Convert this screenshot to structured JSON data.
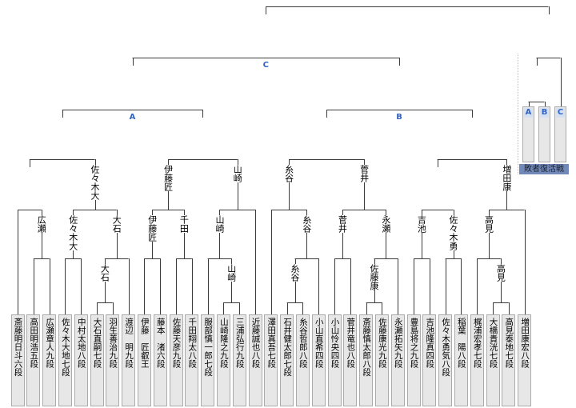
{
  "colors": {
    "line": "#3c3c3c",
    "accent_blue": "#3464c0",
    "box_fill": "#e7e7e7",
    "box_border": "#ababab",
    "letter_bg": "#d4e0f3",
    "revival_bg": "#7288b8",
    "revival_text": "#1c2430",
    "dotted": "#bcbcbc"
  },
  "players": [
    "斎藤明日斗六段",
    "高田明浩五段",
    "広瀬章人九段",
    "佐々木大地七段",
    "中村太地八段",
    "大石直嗣七段",
    "羽生善治九段",
    "渡辺　明九段",
    "伊藤　匠叡王",
    "藤本　渚六段",
    "佐藤天彦九段",
    "千田翔太八段",
    "服部慎一郎七段",
    "山崎隆之九段",
    "三浦弘行九段",
    "近藤誠也八段",
    "澤田真吾七段",
    "石井健太郎七段",
    "糸谷哲郎八段",
    "小山直希四段",
    "小山怜央四段",
    "菅井竜也八段",
    "斎藤慎太郎八段",
    "佐藤康光九段",
    "永瀬拓矢九段",
    "豊島将之九段",
    "吉池隆真四段",
    "佐々木勇気八段",
    "稲葉　陽八段",
    "梶浦宏孝七段",
    "大橋貴洸七段",
    "高見泰地七段",
    "増田康宏八段"
  ],
  "revival": {
    "label": "敗者復活戦",
    "slots": [
      "A",
      "B",
      "C"
    ]
  },
  "matches": [
    {
      "id": "m1",
      "round": "2",
      "a": "p2",
      "b": "p3",
      "winner": "広瀬"
    },
    {
      "id": "m2",
      "round": "3",
      "a": "p1",
      "b": "m1",
      "winner": null
    },
    {
      "id": "m3",
      "round": "2",
      "a": "p4",
      "b": "p5",
      "winner": "佐々木大"
    },
    {
      "id": "m4",
      "round": "1",
      "a": "p6",
      "b": "p7",
      "winner": "大石"
    },
    {
      "id": "m5",
      "round": "2",
      "a": "m4",
      "b": "p8",
      "winner": "大石"
    },
    {
      "id": "m6",
      "round": "3",
      "a": "m3",
      "b": "m5",
      "winner": "佐々木大"
    },
    {
      "id": "m7",
      "round": "4",
      "a": "m2",
      "b": "m6",
      "winner": null
    },
    {
      "id": "m8",
      "round": "2",
      "a": "p9",
      "b": "p10",
      "winner": "伊藤匠"
    },
    {
      "id": "m9",
      "round": "2",
      "a": "p11",
      "b": "p12",
      "winner": "千田"
    },
    {
      "id": "m10",
      "round": "3",
      "a": "m8",
      "b": "m9",
      "winner": "伊藤匠"
    },
    {
      "id": "m11",
      "round": "1",
      "a": "p14",
      "b": "p15",
      "winner": "山崎"
    },
    {
      "id": "m12",
      "round": "2",
      "a": "p13",
      "b": "m11",
      "winner": "山崎"
    },
    {
      "id": "m13",
      "round": "3",
      "a": "m12",
      "b": "p16",
      "winner": "山崎"
    },
    {
      "id": "m14",
      "round": "4",
      "a": "m10",
      "b": "m13",
      "winner": null
    },
    {
      "id": "mA",
      "round": "5",
      "a": "m7",
      "b": "m14",
      "winner": null,
      "tag": "A"
    },
    {
      "id": "m15",
      "round": "1",
      "a": "p18",
      "b": "p19",
      "winner": "糸谷"
    },
    {
      "id": "m16",
      "round": "2",
      "a": "m15",
      "b": "p20",
      "winner": "糸谷"
    },
    {
      "id": "m17",
      "round": "3",
      "a": "p17",
      "b": "m16",
      "winner": "糸谷"
    },
    {
      "id": "m18",
      "round": "2",
      "a": "p21",
      "b": "p22",
      "winner": "菅井"
    },
    {
      "id": "m19",
      "round": "1",
      "a": "p23",
      "b": "p24",
      "winner": "佐藤康"
    },
    {
      "id": "m20",
      "round": "2",
      "a": "m19",
      "b": "p25",
      "winner": "永瀬"
    },
    {
      "id": "m21",
      "round": "3",
      "a": "m18",
      "b": "m20",
      "winner": "菅井"
    },
    {
      "id": "m22",
      "round": "4",
      "a": "m17",
      "b": "m21",
      "winner": null
    },
    {
      "id": "m23",
      "round": "2",
      "a": "p26",
      "b": "p27",
      "winner": "吉池"
    },
    {
      "id": "m24",
      "round": "2",
      "a": "p28",
      "b": "p29",
      "winner": "佐々木勇"
    },
    {
      "id": "m25",
      "round": "3",
      "a": "m23",
      "b": "m24",
      "winner": null
    },
    {
      "id": "m26",
      "round": "1",
      "a": "p31",
      "b": "p32",
      "winner": "高見"
    },
    {
      "id": "m27",
      "round": "2",
      "a": "p30",
      "b": "m26",
      "winner": "高見"
    },
    {
      "id": "m28",
      "round": "3",
      "a": "m27",
      "b": "p33",
      "winner": "増田康"
    },
    {
      "id": "m29",
      "round": "4",
      "a": "m25",
      "b": "m28",
      "winner": null
    },
    {
      "id": "mB",
      "round": "5",
      "a": "m22",
      "b": "m29",
      "winner": null,
      "tag": "B"
    },
    {
      "id": "mC",
      "round": "6",
      "a": "mA",
      "b": "mB",
      "winner": null,
      "tag": "C"
    },
    {
      "id": "rv1",
      "round": "rv1",
      "a": "rA",
      "b": "rB",
      "winner": null
    },
    {
      "id": "rv2",
      "round": "rv2",
      "a": "rv1",
      "b": "rC",
      "winner": null
    },
    {
      "id": "gf",
      "round": "7",
      "a": "mC",
      "b": "rv2",
      "winner": null
    }
  ]
}
